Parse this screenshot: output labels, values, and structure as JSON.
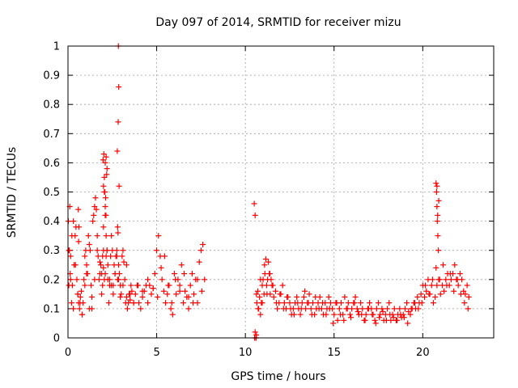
{
  "chart_data": {
    "type": "scatter",
    "title": "Day 097 of 2014, SRMTID for receiver mizu",
    "xlabel": "GPS time / hours",
    "ylabel": "SRMTID / TECUs",
    "xlim": [
      0,
      24
    ],
    "ylim": [
      0,
      1
    ],
    "xticks": [
      0,
      5,
      10,
      15,
      20
    ],
    "yticks": [
      0,
      0.1,
      0.2,
      0.3,
      0.4,
      0.5,
      0.6,
      0.7,
      0.8,
      0.9,
      1
    ],
    "xtick_labels": [
      "0",
      "5",
      "10",
      "15",
      "20"
    ],
    "ytick_labels": [
      "0",
      "0.1",
      "0.2",
      "0.3",
      "0.4",
      "0.5",
      "0.6",
      "0.7",
      "0.8",
      "0.9",
      "1"
    ],
    "marker": "+",
    "color": "#ff0000",
    "grid": true,
    "series": [
      {
        "name": "SRMTID",
        "x": [
          0.05,
          0.1,
          0.15,
          0.2,
          0.25,
          0.3,
          0.35,
          0.4,
          0.45,
          0.5,
          0.55,
          0.6,
          0.65,
          0.7,
          0.75,
          0.8,
          0.85,
          0.9,
          0.95,
          1.0,
          1.05,
          1.1,
          1.15,
          1.2,
          1.25,
          1.3,
          1.35,
          1.4,
          1.45,
          1.5,
          1.55,
          1.6,
          1.65,
          1.7,
          1.75,
          1.8,
          1.85,
          1.9,
          1.95,
          2.0,
          2.05,
          2.1,
          2.15,
          2.2,
          2.25,
          2.3,
          2.35,
          2.4,
          2.45,
          2.5,
          2.55,
          2.6,
          2.65,
          2.7,
          2.75,
          2.8,
          2.85,
          2.9,
          2.95,
          3.0,
          3.05,
          3.1,
          3.15,
          3.2,
          3.25,
          3.3,
          3.35,
          3.4,
          3.45,
          3.5,
          3.55,
          3.6,
          3.7,
          3.8,
          3.9,
          4.0,
          4.1,
          4.2,
          4.3,
          4.4,
          4.5,
          4.6,
          4.7,
          4.8,
          4.9,
          5.0,
          5.1,
          5.2,
          5.3,
          5.4,
          5.5,
          5.6,
          5.7,
          5.8,
          5.9,
          6.0,
          6.1,
          6.2,
          6.3,
          6.4,
          6.5,
          6.6,
          6.7,
          6.8,
          6.9,
          7.0,
          7.1,
          7.2,
          7.3,
          7.4,
          7.5,
          7.6,
          7.7,
          0.05,
          0.12,
          0.22,
          0.3,
          0.42,
          0.55,
          0.68,
          0.8,
          0.95,
          1.05,
          1.2,
          1.35,
          1.5,
          1.65,
          1.8,
          1.9,
          2.0,
          2.05,
          2.1,
          2.15,
          2.2,
          2.25,
          2.35,
          2.45,
          2.55,
          2.65,
          2.75,
          2.85,
          2.95,
          3.1,
          3.3,
          3.5,
          3.7,
          3.95,
          4.2,
          4.5,
          4.8,
          5.05,
          5.25,
          5.45,
          5.65,
          5.85,
          6.05,
          6.3,
          6.55,
          6.8,
          7.05,
          7.3,
          7.55,
          1.95,
          2.0,
          2.05,
          2.1,
          2.15,
          2.2,
          2.0,
          2.08,
          2.12,
          2.18,
          1.98,
          2.02,
          2.1,
          2.14,
          2.8,
          2.82,
          2.84,
          2.86,
          2.83,
          2.78,
          2.88,
          0.02,
          0.08,
          0.15,
          0.6,
          0.62,
          0.58,
          10.5,
          10.55,
          10.6,
          10.65,
          10.7,
          10.75,
          10.8,
          10.85,
          10.9,
          10.95,
          11.0,
          11.05,
          11.1,
          11.15,
          11.2,
          11.25,
          11.3,
          11.35,
          11.4,
          11.45,
          11.5,
          11.6,
          11.7,
          11.8,
          11.9,
          12.0,
          12.1,
          12.2,
          12.3,
          12.4,
          12.5,
          12.6,
          12.7,
          12.8,
          12.9,
          13.0,
          13.1,
          13.2,
          13.3,
          13.4,
          13.5,
          13.6,
          13.7,
          13.8,
          13.9,
          14.0,
          14.1,
          14.2,
          14.3,
          14.4,
          14.5,
          14.6,
          14.7,
          14.8,
          14.9,
          15.0,
          15.1,
          15.2,
          15.3,
          15.4,
          15.5,
          15.6,
          15.7,
          15.8,
          15.9,
          16.0,
          16.1,
          16.2,
          16.3,
          16.4,
          16.5,
          16.6,
          16.7,
          16.8,
          16.9,
          17.0,
          17.1,
          17.2,
          17.3,
          17.4,
          17.5,
          17.6,
          17.7,
          17.8,
          17.9,
          18.0,
          18.1,
          18.2,
          18.3,
          18.4,
          18.5,
          18.6,
          18.7,
          18.8,
          18.9,
          19.0,
          19.1,
          19.2,
          19.3,
          19.4,
          19.5,
          19.6,
          19.7,
          19.8,
          19.9,
          20.0,
          20.1,
          20.2,
          20.3,
          20.4,
          20.5,
          20.6,
          20.7,
          20.8,
          20.9,
          21.0,
          21.1,
          21.2,
          21.3,
          21.4,
          21.5,
          21.6,
          21.7,
          21.8,
          21.9,
          22.0,
          22.1,
          22.2,
          22.3,
          22.4,
          22.5,
          22.6,
          10.52,
          10.62,
          10.72,
          10.85,
          10.95,
          11.08,
          11.22,
          11.38,
          11.55,
          11.75,
          11.95,
          12.15,
          12.35,
          12.55,
          12.75,
          12.95,
          13.15,
          13.35,
          13.55,
          13.75,
          13.95,
          14.15,
          14.35,
          14.55,
          14.75,
          14.95,
          15.15,
          15.35,
          15.55,
          15.75,
          15.95,
          16.15,
          16.35,
          16.55,
          16.75,
          16.95,
          17.15,
          17.35,
          17.55,
          17.75,
          17.95,
          18.15,
          18.35,
          18.55,
          18.75,
          18.95,
          19.15,
          19.35,
          19.55,
          19.75,
          19.95,
          20.15,
          20.35,
          20.55,
          20.75,
          20.95,
          21.15,
          21.35,
          21.55,
          21.75,
          21.95,
          22.15,
          22.35,
          22.55,
          20.75,
          20.78,
          20.8,
          20.82,
          20.85,
          20.88,
          20.9,
          20.8,
          20.84,
          10.6,
          10.62,
          10.55
        ],
        "y": [
          0.3,
          0.45,
          0.2,
          0.12,
          0.18,
          0.1,
          0.25,
          0.35,
          0.38,
          0.2,
          0.15,
          0.12,
          0.1,
          0.14,
          0.16,
          0.08,
          0.12,
          0.2,
          0.28,
          0.3,
          0.25,
          0.22,
          0.35,
          0.32,
          0.3,
          0.18,
          0.1,
          0.4,
          0.42,
          0.45,
          0.48,
          0.44,
          0.35,
          0.28,
          0.2,
          0.22,
          0.25,
          0.15,
          0.18,
          0.3,
          0.2,
          0.22,
          0.28,
          0.3,
          0.2,
          0.12,
          0.18,
          0.28,
          0.35,
          0.3,
          0.18,
          0.25,
          0.22,
          0.28,
          0.3,
          0.2,
          0.25,
          0.22,
          0.18,
          0.15,
          0.28,
          0.3,
          0.26,
          0.2,
          0.12,
          0.14,
          0.1,
          0.12,
          0.15,
          0.13,
          0.18,
          0.16,
          0.12,
          0.15,
          0.18,
          0.12,
          0.1,
          0.14,
          0.16,
          0.18,
          0.2,
          0.18,
          0.15,
          0.17,
          0.22,
          0.3,
          0.35,
          0.28,
          0.2,
          0.16,
          0.12,
          0.15,
          0.18,
          0.1,
          0.08,
          0.22,
          0.15,
          0.2,
          0.18,
          0.25,
          0.12,
          0.16,
          0.14,
          0.1,
          0.18,
          0.22,
          0.15,
          0.2,
          0.12,
          0.26,
          0.3,
          0.32,
          0.2,
          0.18,
          0.22,
          0.35,
          0.4,
          0.25,
          0.15,
          0.12,
          0.08,
          0.18,
          0.22,
          0.1,
          0.14,
          0.2,
          0.3,
          0.26,
          0.22,
          0.38,
          0.5,
          0.42,
          0.35,
          0.3,
          0.25,
          0.2,
          0.18,
          0.15,
          0.22,
          0.28,
          0.2,
          0.14,
          0.18,
          0.25,
          0.15,
          0.12,
          0.18,
          0.16,
          0.12,
          0.17,
          0.14,
          0.24,
          0.28,
          0.18,
          0.12,
          0.2,
          0.16,
          0.22,
          0.14,
          0.12,
          0.2,
          0.16,
          0.28,
          0.24,
          0.55,
          0.6,
          0.62,
          0.58,
          0.52,
          0.5,
          0.48,
          0.56,
          0.61,
          0.63,
          0.45,
          0.42,
          0.38,
          0.36,
          1.0,
          0.86,
          0.74,
          0.64,
          0.52,
          0.4,
          0.3,
          0.28,
          0.33,
          0.38,
          0.44,
          0.46,
          0.42,
          0.0,
          0.12,
          0.16,
          0.1,
          0.14,
          0.08,
          0.12,
          0.18,
          0.2,
          0.15,
          0.22,
          0.27,
          0.18,
          0.2,
          0.26,
          0.22,
          0.15,
          0.2,
          0.18,
          0.14,
          0.16,
          0.1,
          0.12,
          0.15,
          0.18,
          0.12,
          0.1,
          0.14,
          0.12,
          0.08,
          0.1,
          0.12,
          0.14,
          0.1,
          0.08,
          0.12,
          0.14,
          0.1,
          0.12,
          0.15,
          0.1,
          0.12,
          0.08,
          0.1,
          0.12,
          0.14,
          0.1,
          0.08,
          0.12,
          0.1,
          0.14,
          0.12,
          0.1,
          0.08,
          0.12,
          0.06,
          0.1,
          0.12,
          0.08,
          0.14,
          0.1,
          0.12,
          0.08,
          0.1,
          0.12,
          0.14,
          0.1,
          0.08,
          0.12,
          0.1,
          0.06,
          0.08,
          0.1,
          0.12,
          0.1,
          0.08,
          0.06,
          0.1,
          0.12,
          0.08,
          0.1,
          0.06,
          0.08,
          0.1,
          0.12,
          0.06,
          0.08,
          0.1,
          0.06,
          0.08,
          0.1,
          0.07,
          0.08,
          0.1,
          0.12,
          0.09,
          0.08,
          0.1,
          0.12,
          0.1,
          0.14,
          0.12,
          0.15,
          0.18,
          0.14,
          0.16,
          0.2,
          0.15,
          0.18,
          0.12,
          0.14,
          0.18,
          0.2,
          0.15,
          0.18,
          0.16,
          0.2,
          0.22,
          0.18,
          0.2,
          0.22,
          0.25,
          0.2,
          0.18,
          0.22,
          0.2,
          0.16,
          0.15,
          0.18,
          0.14,
          0.0,
          0.15,
          0.1,
          0.2,
          0.12,
          0.25,
          0.15,
          0.22,
          0.18,
          0.12,
          0.15,
          0.1,
          0.14,
          0.1,
          0.08,
          0.12,
          0.1,
          0.16,
          0.12,
          0.08,
          0.14,
          0.1,
          0.12,
          0.08,
          0.1,
          0.05,
          0.12,
          0.08,
          0.06,
          0.1,
          0.07,
          0.12,
          0.09,
          0.08,
          0.06,
          0.1,
          0.08,
          0.05,
          0.07,
          0.09,
          0.06,
          0.08,
          0.07,
          0.06,
          0.08,
          0.07,
          0.05,
          0.1,
          0.12,
          0.1,
          0.12,
          0.18,
          0.15,
          0.2,
          0.24,
          0.2,
          0.25,
          0.18,
          0.22,
          0.16,
          0.2,
          0.15,
          0.12,
          0.1,
          0.53,
          0.5,
          0.45,
          0.4,
          0.35,
          0.3,
          0.47,
          0.52,
          0.42,
          0.0,
          0.01,
          0.02
        ]
      }
    ]
  }
}
